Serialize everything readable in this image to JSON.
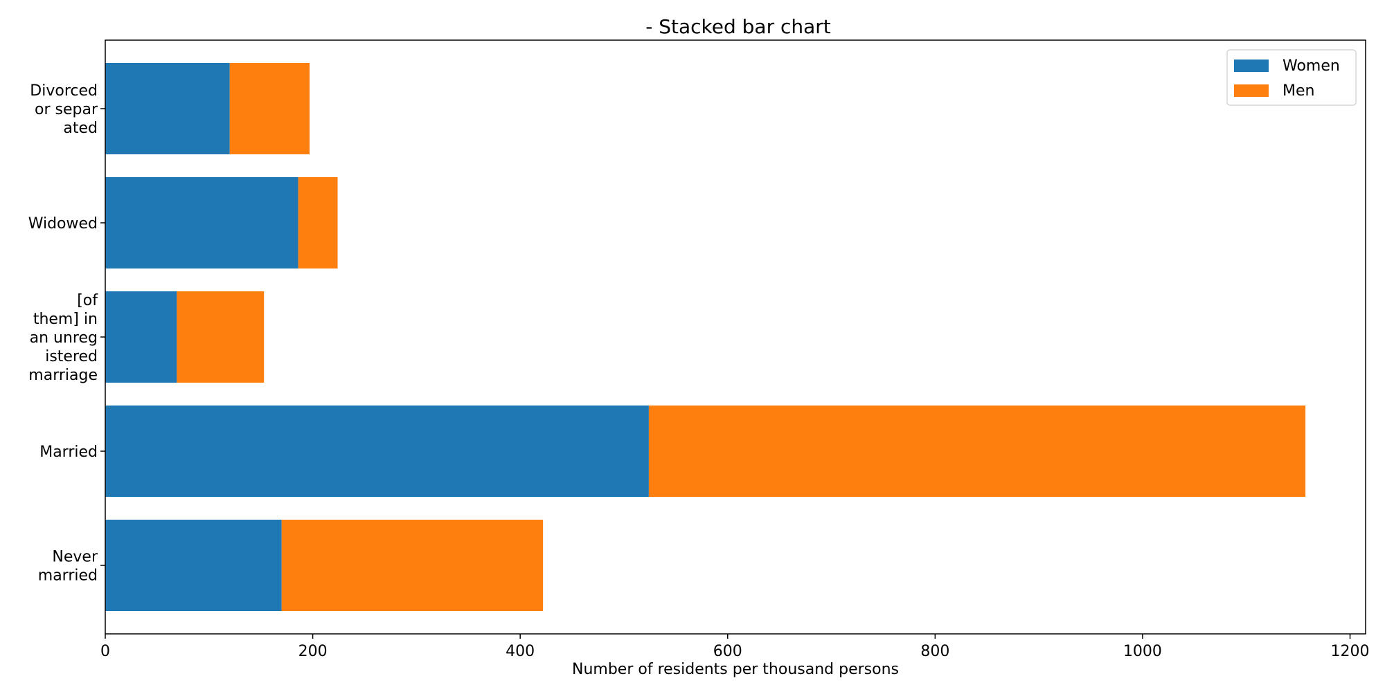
{
  "chart_data": {
    "type": "bar",
    "orientation": "horizontal",
    "stacked": true,
    "title": "- Stacked bar chart",
    "xlabel": "Number of residents per thousand persons",
    "ylabel": "",
    "xlim": [
      0,
      1215
    ],
    "x_ticks": [
      0,
      200,
      400,
      600,
      800,
      1000,
      1200
    ],
    "x_tick_labels": [
      "0",
      "200",
      "400",
      "600",
      "800",
      "1000",
      "1200"
    ],
    "grid": false,
    "legend_position": "top-right",
    "categories": [
      "Never married",
      "Married",
      "[of them] in an unregistered marriage",
      "Widowed",
      "Divorced or separated"
    ],
    "category_tick_lines": [
      [
        "Never",
        "married"
      ],
      [
        "Married"
      ],
      [
        "[of",
        "them] in",
        "an unreg",
        "istered",
        "marriage"
      ],
      [
        "Widowed"
      ],
      [
        "Divorced",
        "or separ",
        "ated"
      ]
    ],
    "series": [
      {
        "name": "Women",
        "color": "#1f77b4",
        "values": [
          170,
          524,
          69,
          186,
          120
        ]
      },
      {
        "name": "Men",
        "color": "#ff7f0e",
        "values": [
          252,
          633,
          84,
          38,
          77
        ]
      }
    ]
  }
}
